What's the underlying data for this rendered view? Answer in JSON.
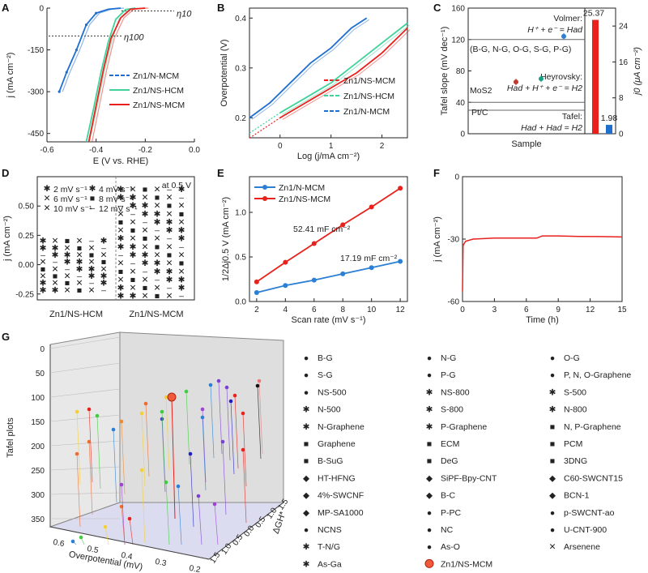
{
  "panels": {
    "A": "A",
    "B": "B",
    "C": "C",
    "D": "D",
    "E": "E",
    "F": "F",
    "G": "G"
  },
  "chart_data": [
    {
      "id": "A",
      "type": "line",
      "xlabel": "E (V vs. RHE)",
      "ylabel": "j (mA cm⁻²)",
      "xlim": [
        -0.6,
        0.0
      ],
      "ylim": [
        -480,
        0
      ],
      "xticks": [
        "-0.6",
        "-0.4",
        "-0.2",
        "0.0"
      ],
      "yticks": [
        "0",
        "-150",
        "-300",
        "-450"
      ],
      "annotations": [
        "η10",
        "η100"
      ],
      "series": [
        {
          "name": "Zn1/N-MCM",
          "color": "#1f6fd1",
          "x": [
            -0.3,
            -0.35,
            -0.4,
            -0.44,
            -0.48,
            -0.52,
            -0.55
          ],
          "y": [
            0,
            -4,
            -18,
            -60,
            -150,
            -230,
            -300
          ]
        },
        {
          "name": "Zn1/NS-HCM",
          "color": "#3fd29a",
          "x": [
            -0.24,
            -0.28,
            -0.32,
            -0.35,
            -0.38,
            -0.41,
            -0.44
          ],
          "y": [
            0,
            -5,
            -40,
            -120,
            -230,
            -360,
            -480
          ]
        },
        {
          "name": "Zn1/NS-MCM",
          "color": "#e8211d",
          "x": [
            -0.2,
            -0.26,
            -0.3,
            -0.34,
            -0.37,
            -0.4,
            -0.43
          ],
          "y": [
            0,
            -4,
            -35,
            -110,
            -220,
            -350,
            -480
          ]
        }
      ]
    },
    {
      "id": "B",
      "type": "line",
      "xlabel": "Log (j/mA cm⁻²)",
      "ylabel": "Overpotential (V)",
      "xlim": [
        -0.6,
        2.5
      ],
      "ylim": [
        0.16,
        0.42
      ],
      "xticks": [
        "0",
        "1",
        "2"
      ],
      "yticks": [
        "0.2",
        "0.3",
        "0.4"
      ],
      "series": [
        {
          "name": "Zn1/NS-MCM",
          "color": "#e8211d",
          "x": [
            0,
            0.5,
            1,
            1.5,
            2,
            2.5
          ],
          "y": [
            0.2,
            0.23,
            0.26,
            0.29,
            0.33,
            0.38
          ]
        },
        {
          "name": "Zn1/NS-HCM",
          "color": "#3fd29a",
          "x": [
            0,
            0.5,
            1,
            1.5,
            2,
            2.5
          ],
          "y": [
            0.21,
            0.24,
            0.27,
            0.31,
            0.35,
            0.39
          ]
        },
        {
          "name": "Zn1/N-MCM",
          "color": "#1f6fd1",
          "x": [
            -0.6,
            -0.2,
            0.2,
            0.6,
            1,
            1.4,
            1.7
          ],
          "y": [
            0.2,
            0.23,
            0.27,
            0.31,
            0.34,
            0.38,
            0.4
          ]
        }
      ]
    },
    {
      "id": "C",
      "type": "scatter",
      "xlabel": "Sample",
      "ylabel": "Tafel slope (mV dec⁻¹)",
      "ylabel2": "j0 (μA cm⁻²)",
      "ylim": [
        0,
        160
      ],
      "ylim2": [
        0,
        28
      ],
      "yticks": [
        "0",
        "40",
        "80",
        "120",
        "160"
      ],
      "yticks2": [
        "0",
        "8",
        "16",
        "24"
      ],
      "lines": [
        {
          "label": "Volmer:",
          "eq": "H⁺ + e⁻ = Had",
          "y": 120
        },
        {
          "label": "Heyrovsky:",
          "eq": "Had + H⁺ + e⁻ = H2",
          "y": 40
        },
        {
          "label": "Tafel:",
          "eq": "Had + Had = H2",
          "y": 30
        }
      ],
      "groups": [
        "(B-G, N-G, O-G, S-G, P-G)",
        "MoS2",
        "Pt/C"
      ],
      "points": [
        {
          "y": 66,
          "color": "#c0392b"
        },
        {
          "y": 70,
          "color": "#16a085"
        },
        {
          "y": 124,
          "color": "#2b7fd4"
        }
      ],
      "bars": [
        {
          "value": 25.37,
          "label": "25.37",
          "color": "#e8211d"
        },
        {
          "value": 1.98,
          "label": "1.98",
          "color": "#1f6fd1"
        }
      ]
    },
    {
      "id": "D",
      "type": "scatter",
      "ylabel": "j (mA cm⁻²)",
      "ylim": [
        -0.3,
        0.75
      ],
      "yticks": [
        "-0.25",
        "0.00",
        "0.25",
        "0.50"
      ],
      "categories": [
        "Zn1/NS-HCM",
        "Zn1/NS-MCM"
      ],
      "note": "at 0.5 V",
      "series": [
        {
          "name": "2 mV s⁻¹",
          "color": "#e8211d",
          "marker": "*"
        },
        {
          "name": "4 mV s⁻¹",
          "color": "#e8211d",
          "marker": "*"
        },
        {
          "name": "6 mV s⁻¹",
          "color": "#ef6b2f",
          "marker": "x"
        },
        {
          "name": "8 mV s⁻¹",
          "color": "#ef8a2f",
          "marker": "s"
        },
        {
          "name": "10 mV s⁻¹",
          "color": "#f5b83a",
          "marker": "x"
        },
        {
          "name": "12 mV s⁻¹",
          "color": "#f5c542",
          "marker": "-"
        }
      ],
      "ranges": [
        {
          "category": "Zn1/NS-HCM",
          "min": -0.22,
          "max": 0.2
        },
        {
          "category": "Zn1/NS-MCM",
          "min": -0.27,
          "max": 0.64
        }
      ]
    },
    {
      "id": "E",
      "type": "line",
      "xlabel": "Scan rate (mV s⁻¹)",
      "ylabel": "1/2Δj0.5 V (mA cm⁻²)",
      "xlim": [
        1.5,
        12.5
      ],
      "ylim": [
        0,
        1.4
      ],
      "xticks": [
        "2",
        "4",
        "6",
        "8",
        "10",
        "12"
      ],
      "yticks": [
        "0.0",
        "0.5",
        "1.0"
      ],
      "series": [
        {
          "name": "Zn1/N-MCM",
          "color": "#2b7fd4",
          "x": [
            2,
            4,
            6,
            8,
            10,
            12
          ],
          "y": [
            0.1,
            0.18,
            0.24,
            0.31,
            0.38,
            0.45
          ],
          "label": "17.19 mF cm⁻²"
        },
        {
          "name": "Zn1/NS-MCM",
          "color": "#e8211d",
          "x": [
            2,
            4,
            6,
            8,
            10,
            12
          ],
          "y": [
            0.22,
            0.44,
            0.65,
            0.86,
            1.06,
            1.27
          ],
          "label": "52.41 mF cm⁻²"
        }
      ]
    },
    {
      "id": "F",
      "type": "line",
      "xlabel": "Time (h)",
      "ylabel": "j (mA cm⁻²)",
      "xlim": [
        0,
        15
      ],
      "ylim": [
        -60,
        0
      ],
      "xticks": [
        "0",
        "3",
        "6",
        "9",
        "12",
        "15"
      ],
      "yticks": [
        "0",
        "-30",
        "-60"
      ],
      "series": [
        {
          "name": "",
          "color": "#e8211d",
          "x": [
            0,
            0.05,
            0.3,
            1,
            3,
            5,
            7,
            7.5,
            9,
            11,
            13,
            15
          ],
          "y": [
            -55,
            -33,
            -31,
            -30,
            -29.5,
            -29.5,
            -29.5,
            -28.5,
            -28.5,
            -28.7,
            -28.8,
            -29
          ]
        }
      ]
    },
    {
      "id": "G",
      "type": "scatter",
      "xlabel": "Overpotential (mV)",
      "ylabel": "Tafel plots",
      "zlabel": "ΔGH*",
      "yticks": [
        "0",
        "50",
        "100",
        "150",
        "200",
        "250",
        "300",
        "350"
      ],
      "xticks": [
        "0.6",
        "0.5",
        "0.4",
        "0.3",
        "0.2"
      ],
      "zticks": [
        "1.5",
        "1.0",
        "0.5",
        "0.0",
        "0.5",
        "1.0",
        "1.5"
      ],
      "legend": [
        {
          "name": "B-G",
          "color": "#e8211d",
          "marker": "o"
        },
        {
          "name": "N-G",
          "color": "#ef6b2f",
          "marker": "o"
        },
        {
          "name": "O-G",
          "color": "#f5d033",
          "marker": "o"
        },
        {
          "name": "S-G",
          "color": "#3fcc3f",
          "marker": "o"
        },
        {
          "name": "P-G",
          "color": "#2b7fd4",
          "marker": "o"
        },
        {
          "name": "P, N, O-Graphene",
          "color": "#7e3fd4",
          "marker": "o"
        },
        {
          "name": "NS-500",
          "color": "#7e3fd4",
          "marker": "o"
        },
        {
          "name": "NS-800",
          "color": "#e8211d",
          "marker": "*"
        },
        {
          "name": "S-500",
          "color": "#ef8a2f",
          "marker": "*"
        },
        {
          "name": "N-500",
          "color": "#f5d033",
          "marker": "*"
        },
        {
          "name": "S-800",
          "color": "#3fcc3f",
          "marker": "*"
        },
        {
          "name": "N-800",
          "color": "#2b7fd4",
          "marker": "*"
        },
        {
          "name": "N-Graphene",
          "color": "#5040d4",
          "marker": "*"
        },
        {
          "name": "P-Graphene",
          "color": "#a040d4",
          "marker": "*"
        },
        {
          "name": "N, P-Graphene",
          "color": "#e8211d",
          "marker": "s"
        },
        {
          "name": "Graphene",
          "color": "#ef6b2f",
          "marker": "s"
        },
        {
          "name": "ECM",
          "color": "#f5d033",
          "marker": "s"
        },
        {
          "name": "PCM",
          "color": "#3fcc3f",
          "marker": "s"
        },
        {
          "name": "B-SuG",
          "color": "#2b7fd4",
          "marker": "s"
        },
        {
          "name": "DeG",
          "color": "#7e3fd4",
          "marker": "s"
        },
        {
          "name": "3DNG",
          "color": "#a040d4",
          "marker": "s"
        },
        {
          "name": "HT-HFNG",
          "color": "#e8211d",
          "marker": "d"
        },
        {
          "name": "SiPF-Bpy-CNT",
          "color": "#ef6b2f",
          "marker": "d"
        },
        {
          "name": "C60-SWCNT15",
          "color": "#f5d033",
          "marker": "d"
        },
        {
          "name": "4%-SWCNF",
          "color": "#3fcc3f",
          "marker": "d"
        },
        {
          "name": "B-C",
          "color": "#2b7fd4",
          "marker": "d"
        },
        {
          "name": "BCN-1",
          "color": "#2020c0",
          "marker": "d"
        },
        {
          "name": "MP-SA1000",
          "color": "#7e3fd4",
          "marker": "d"
        },
        {
          "name": "P-PC",
          "color": "#e8211d",
          "marker": "o"
        },
        {
          "name": "p-SWCNT-ao",
          "color": "#ef6b2f",
          "marker": "o"
        },
        {
          "name": "NCNS",
          "color": "#f5d033",
          "marker": "o"
        },
        {
          "name": "NC",
          "color": "#3fcc3f",
          "marker": "o"
        },
        {
          "name": "U-CNT-900",
          "color": "#2b7fd4",
          "marker": "o"
        },
        {
          "name": "T-N/G",
          "color": "#2020c0",
          "marker": "*"
        },
        {
          "name": "As-O",
          "color": "#a040d4",
          "marker": "o"
        },
        {
          "name": "Arsenene",
          "color": "#e87a7a",
          "marker": "x"
        },
        {
          "name": "As-Ga",
          "color": "#111111",
          "marker": "*"
        },
        {
          "name": "Zn1/NS-MCM",
          "color": "#e8211d",
          "marker": "ball"
        }
      ]
    }
  ]
}
